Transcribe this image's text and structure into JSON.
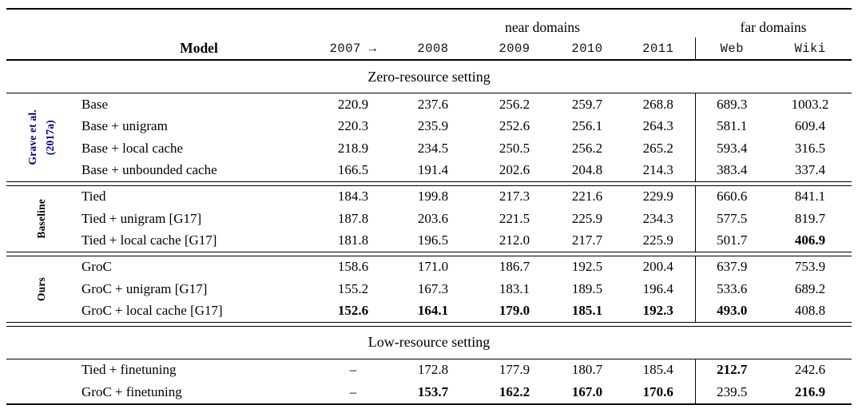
{
  "table": {
    "rules_color": "#000000",
    "citation_color": "#00008B",
    "header": {
      "near_domains": "near domains",
      "far_domains": "far domains",
      "model": "Model",
      "columns": [
        "2007 →",
        "2008",
        "2009",
        "2010",
        "2011",
        "Web",
        "Wiki"
      ]
    },
    "sections": [
      {
        "heading": "Zero-resource setting",
        "groups": [
          {
            "label_lines": [
              "Grave et al.",
              "(2017a)"
            ],
            "label_color": "#00008B",
            "rows": [
              {
                "model": "Base",
                "values": [
                  "220.9",
                  "237.6",
                  "256.2",
                  "259.7",
                  "268.8",
                  "689.3",
                  "1003.2"
                ],
                "bold": [
                  0,
                  0,
                  0,
                  0,
                  0,
                  0,
                  0
                ]
              },
              {
                "model": "Base + unigram",
                "values": [
                  "220.3",
                  "235.9",
                  "252.6",
                  "256.1",
                  "264.3",
                  "581.1",
                  "609.4"
                ],
                "bold": [
                  0,
                  0,
                  0,
                  0,
                  0,
                  0,
                  0
                ]
              },
              {
                "model": "Base + local cache",
                "values": [
                  "218.9",
                  "234.5",
                  "250.5",
                  "256.2",
                  "265.2",
                  "593.4",
                  "316.5"
                ],
                "bold": [
                  0,
                  0,
                  0,
                  0,
                  0,
                  0,
                  0
                ]
              },
              {
                "model": "Base + unbounded cache",
                "values": [
                  "166.5",
                  "191.4",
                  "202.6",
                  "204.8",
                  "214.3",
                  "383.4",
                  "337.4"
                ],
                "bold": [
                  0,
                  0,
                  0,
                  0,
                  0,
                  0,
                  0
                ]
              }
            ]
          },
          {
            "label_lines": [
              "Baseline"
            ],
            "label_color": "#000000",
            "rows": [
              {
                "model": "Tied",
                "values": [
                  "184.3",
                  "199.8",
                  "217.3",
                  "221.6",
                  "229.9",
                  "660.6",
                  "841.1"
                ],
                "bold": [
                  0,
                  0,
                  0,
                  0,
                  0,
                  0,
                  0
                ]
              },
              {
                "model": "Tied + unigram [G17]",
                "values": [
                  "187.8",
                  "203.6",
                  "221.5",
                  "225.9",
                  "234.3",
                  "577.5",
                  "819.7"
                ],
                "bold": [
                  0,
                  0,
                  0,
                  0,
                  0,
                  0,
                  0
                ]
              },
              {
                "model": "Tied + local cache [G17]",
                "values": [
                  "181.8",
                  "196.5",
                  "212.0",
                  "217.7",
                  "225.9",
                  "501.7",
                  "406.9"
                ],
                "bold": [
                  0,
                  0,
                  0,
                  0,
                  0,
                  0,
                  1
                ]
              }
            ]
          },
          {
            "label_lines": [
              "Ours"
            ],
            "label_color": "#000000",
            "rows": [
              {
                "model": "GroC",
                "values": [
                  "158.6",
                  "171.0",
                  "186.7",
                  "192.5",
                  "200.4",
                  "637.9",
                  "753.9"
                ],
                "bold": [
                  0,
                  0,
                  0,
                  0,
                  0,
                  0,
                  0
                ]
              },
              {
                "model": "GroC + unigram [G17]",
                "values": [
                  "155.2",
                  "167.3",
                  "183.1",
                  "189.5",
                  "196.4",
                  "533.6",
                  "689.2"
                ],
                "bold": [
                  0,
                  0,
                  0,
                  0,
                  0,
                  0,
                  0
                ]
              },
              {
                "model": "GroC + local cache [G17]",
                "values": [
                  "152.6",
                  "164.1",
                  "179.0",
                  "185.1",
                  "192.3",
                  "493.0",
                  "408.8"
                ],
                "bold": [
                  1,
                  1,
                  1,
                  1,
                  1,
                  1,
                  0
                ]
              }
            ]
          }
        ]
      },
      {
        "heading": "Low-resource setting",
        "groups": [
          {
            "label_lines": [],
            "label_color": "#000000",
            "rows": [
              {
                "model": "Tied + finetuning",
                "values": [
                  "–",
                  "172.8",
                  "177.9",
                  "180.7",
                  "185.4",
                  "212.7",
                  "242.6"
                ],
                "bold": [
                  0,
                  0,
                  0,
                  0,
                  0,
                  1,
                  0
                ]
              },
              {
                "model": "GroC + finetuning",
                "values": [
                  "–",
                  "153.7",
                  "162.2",
                  "167.0",
                  "170.6",
                  "239.5",
                  "216.9"
                ],
                "bold": [
                  0,
                  1,
                  1,
                  1,
                  1,
                  0,
                  1
                ]
              }
            ]
          }
        ]
      }
    ]
  }
}
